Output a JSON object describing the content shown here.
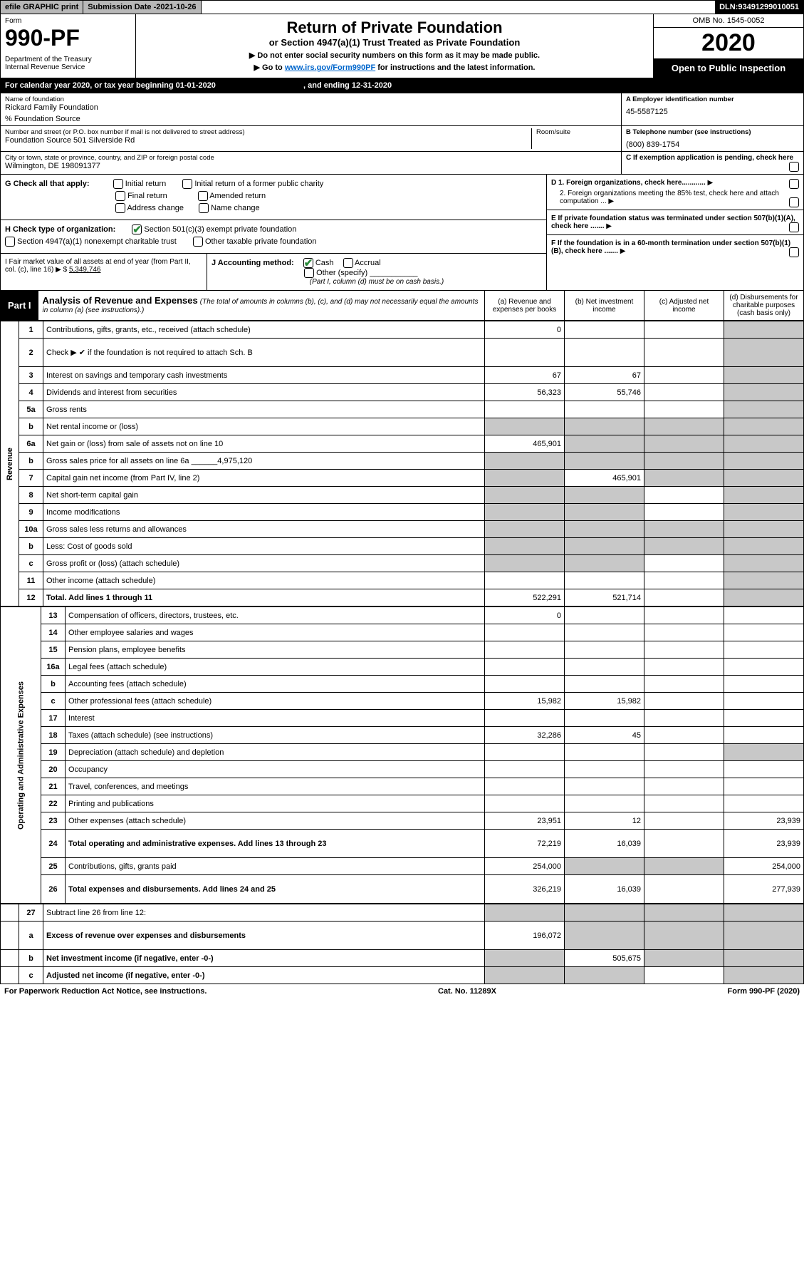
{
  "topbar": {
    "efile": "efile GRAPHIC print",
    "subdate_label": "Submission Date - ",
    "subdate": "2021-10-26",
    "dln_label": "DLN: ",
    "dln": "93491299010051"
  },
  "hdr": {
    "form": "Form",
    "formno": "990-PF",
    "dept": "Department of the Treasury\nInternal Revenue Service",
    "title": "Return of Private Foundation",
    "subtitle": "or Section 4947(a)(1) Trust Treated as Private Foundation",
    "note1": "▶ Do not enter social security numbers on this form as it may be made public.",
    "note2_pre": "▶ Go to ",
    "note2_link": "www.irs.gov/Form990PF",
    "note2_post": " for instructions and the latest information.",
    "omb": "OMB No. 1545-0052",
    "year": "2020",
    "open": "Open to Public Inspection"
  },
  "calrow": {
    "pre": "For calendar year 2020, or tax year beginning ",
    "begin": "01-01-2020",
    "mid": " , and ending ",
    "end": "12-31-2020"
  },
  "id": {
    "name_lbl": "Name of foundation",
    "name": "Rickard Family Foundation",
    "care": "% Foundation Source",
    "addr_lbl": "Number and street (or P.O. box number if mail is not delivered to street address)",
    "addr": "Foundation Source 501 Silverside Rd",
    "room_lbl": "Room/suite",
    "city_lbl": "City or town, state or province, country, and ZIP or foreign postal code",
    "city": "Wilmington, DE 198091377",
    "a_lbl": "A Employer identification number",
    "a_val": "45-5587125",
    "b_lbl": "B Telephone number (see instructions)",
    "b_val": "(800) 839-1754",
    "c_lbl": "C If exemption application is pending, check here",
    "d1": "D 1. Foreign organizations, check here............",
    "d2": "2. Foreign organizations meeting the 85% test, check here and attach computation ...",
    "e": "E If private foundation status was terminated under section 507(b)(1)(A), check here .......",
    "f": "F If the foundation is in a 60-month termination under section 507(b)(1)(B), check here ......."
  },
  "g": {
    "lbl": "G Check all that apply:",
    "opts": [
      "Initial return",
      "Initial return of a former public charity",
      "Final return",
      "Amended return",
      "Address change",
      "Name change"
    ]
  },
  "h": {
    "lbl": "H Check type of organization:",
    "o1": "Section 501(c)(3) exempt private foundation",
    "o2": "Section 4947(a)(1) nonexempt charitable trust",
    "o3": "Other taxable private foundation"
  },
  "i": {
    "lbl": "I Fair market value of all assets at end of year (from Part II, col. (c), line 16) ▶ $",
    "val": "5,349,746"
  },
  "j": {
    "lbl": "J Accounting method:",
    "o1": "Cash",
    "o2": "Accrual",
    "o3": "Other (specify)",
    "note": "(Part I, column (d) must be on cash basis.)"
  },
  "part1": {
    "tag": "Part I",
    "title": "Analysis of Revenue and Expenses",
    "note": "(The total of amounts in columns (b), (c), and (d) may not necessarily equal the amounts in column (a) (see instructions).)",
    "cols": {
      "a": "(a) Revenue and expenses per books",
      "b": "(b) Net investment income",
      "c": "(c) Adjusted net income",
      "d": "(d) Disbursements for charitable purposes (cash basis only)"
    }
  },
  "side": {
    "rev": "Revenue",
    "exp": "Operating and Administrative Expenses"
  },
  "rows": [
    {
      "n": "1",
      "lbl": "Contributions, gifts, grants, etc., received (attach schedule)",
      "a": "0",
      "b": "",
      "c": "",
      "d": "shade"
    },
    {
      "n": "2",
      "lbl": "Check ▶ ✔ if the foundation is not required to attach Sch. B",
      "a": "",
      "b": "",
      "c": "",
      "d": "shade",
      "tall": true
    },
    {
      "n": "3",
      "lbl": "Interest on savings and temporary cash investments",
      "a": "67",
      "b": "67",
      "c": "",
      "d": "shade"
    },
    {
      "n": "4",
      "lbl": "Dividends and interest from securities",
      "a": "56,323",
      "b": "55,746",
      "c": "",
      "d": "shade"
    },
    {
      "n": "5a",
      "lbl": "Gross rents",
      "a": "",
      "b": "",
      "c": "",
      "d": "shade"
    },
    {
      "n": "b",
      "lbl": "Net rental income or (loss)",
      "a": "shade",
      "b": "shade",
      "c": "shade",
      "d": "shade"
    },
    {
      "n": "6a",
      "lbl": "Net gain or (loss) from sale of assets not on line 10",
      "a": "465,901",
      "b": "shade",
      "c": "shade",
      "d": "shade"
    },
    {
      "n": "b",
      "lbl": "Gross sales price for all assets on line 6a ______4,975,120",
      "a": "shade",
      "b": "shade",
      "c": "shade",
      "d": "shade"
    },
    {
      "n": "7",
      "lbl": "Capital gain net income (from Part IV, line 2)",
      "a": "shade",
      "b": "465,901",
      "c": "shade",
      "d": "shade"
    },
    {
      "n": "8",
      "lbl": "Net short-term capital gain",
      "a": "shade",
      "b": "shade",
      "c": "",
      "d": "shade"
    },
    {
      "n": "9",
      "lbl": "Income modifications",
      "a": "shade",
      "b": "shade",
      "c": "",
      "d": "shade"
    },
    {
      "n": "10a",
      "lbl": "Gross sales less returns and allowances",
      "a": "shade",
      "b": "shade",
      "c": "shade",
      "d": "shade"
    },
    {
      "n": "b",
      "lbl": "Less: Cost of goods sold",
      "a": "shade",
      "b": "shade",
      "c": "shade",
      "d": "shade"
    },
    {
      "n": "c",
      "lbl": "Gross profit or (loss) (attach schedule)",
      "a": "shade",
      "b": "shade",
      "c": "",
      "d": "shade"
    },
    {
      "n": "11",
      "lbl": "Other income (attach schedule)",
      "a": "",
      "b": "",
      "c": "",
      "d": "shade"
    },
    {
      "n": "12",
      "lbl": "Total. Add lines 1 through 11",
      "a": "522,291",
      "b": "521,714",
      "c": "",
      "d": "shade",
      "bold": true
    }
  ],
  "exprows": [
    {
      "n": "13",
      "lbl": "Compensation of officers, directors, trustees, etc.",
      "a": "0",
      "b": "",
      "c": "",
      "d": ""
    },
    {
      "n": "14",
      "lbl": "Other employee salaries and wages",
      "a": "",
      "b": "",
      "c": "",
      "d": ""
    },
    {
      "n": "15",
      "lbl": "Pension plans, employee benefits",
      "a": "",
      "b": "",
      "c": "",
      "d": ""
    },
    {
      "n": "16a",
      "lbl": "Legal fees (attach schedule)",
      "a": "",
      "b": "",
      "c": "",
      "d": ""
    },
    {
      "n": "b",
      "lbl": "Accounting fees (attach schedule)",
      "a": "",
      "b": "",
      "c": "",
      "d": ""
    },
    {
      "n": "c",
      "lbl": "Other professional fees (attach schedule)",
      "a": "15,982",
      "b": "15,982",
      "c": "",
      "d": ""
    },
    {
      "n": "17",
      "lbl": "Interest",
      "a": "",
      "b": "",
      "c": "",
      "d": ""
    },
    {
      "n": "18",
      "lbl": "Taxes (attach schedule) (see instructions)",
      "a": "32,286",
      "b": "45",
      "c": "",
      "d": ""
    },
    {
      "n": "19",
      "lbl": "Depreciation (attach schedule) and depletion",
      "a": "",
      "b": "",
      "c": "",
      "d": "shade"
    },
    {
      "n": "20",
      "lbl": "Occupancy",
      "a": "",
      "b": "",
      "c": "",
      "d": ""
    },
    {
      "n": "21",
      "lbl": "Travel, conferences, and meetings",
      "a": "",
      "b": "",
      "c": "",
      "d": ""
    },
    {
      "n": "22",
      "lbl": "Printing and publications",
      "a": "",
      "b": "",
      "c": "",
      "d": ""
    },
    {
      "n": "23",
      "lbl": "Other expenses (attach schedule)",
      "a": "23,951",
      "b": "12",
      "c": "",
      "d": "23,939"
    },
    {
      "n": "24",
      "lbl": "Total operating and administrative expenses. Add lines 13 through 23",
      "a": "72,219",
      "b": "16,039",
      "c": "",
      "d": "23,939",
      "bold": true,
      "tall": true
    },
    {
      "n": "25",
      "lbl": "Contributions, gifts, grants paid",
      "a": "254,000",
      "b": "shade",
      "c": "shade",
      "d": "254,000"
    },
    {
      "n": "26",
      "lbl": "Total expenses and disbursements. Add lines 24 and 25",
      "a": "326,219",
      "b": "16,039",
      "c": "",
      "d": "277,939",
      "bold": true,
      "tall": true
    }
  ],
  "sumrows": [
    {
      "n": "27",
      "lbl": "Subtract line 26 from line 12:",
      "a": "shade",
      "b": "shade",
      "c": "shade",
      "d": "shade"
    },
    {
      "n": "a",
      "lbl": "Excess of revenue over expenses and disbursements",
      "a": "196,072",
      "b": "shade",
      "c": "shade",
      "d": "shade",
      "bold": true,
      "tall": true
    },
    {
      "n": "b",
      "lbl": "Net investment income (if negative, enter -0-)",
      "a": "shade",
      "b": "505,675",
      "c": "shade",
      "d": "shade",
      "bold": true
    },
    {
      "n": "c",
      "lbl": "Adjusted net income (if negative, enter -0-)",
      "a": "shade",
      "b": "shade",
      "c": "",
      "d": "shade",
      "bold": true
    }
  ],
  "footer": {
    "left": "For Paperwork Reduction Act Notice, see instructions.",
    "mid": "Cat. No. 11289X",
    "right": "Form 990-PF (2020)"
  }
}
